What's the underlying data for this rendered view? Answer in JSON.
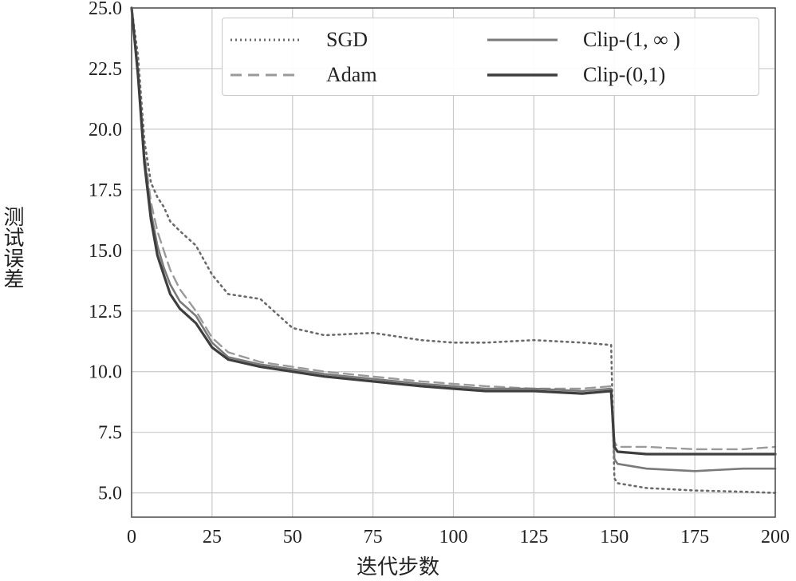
{
  "chart_data": {
    "type": "line",
    "title": "",
    "xlabel": "迭代步数",
    "ylabel": "测试误差",
    "xlim": [
      0,
      200
    ],
    "ylim": [
      4.0,
      25.0
    ],
    "xticks": [
      "0",
      "25",
      "50",
      "75",
      "100",
      "125",
      "150",
      "175",
      "200"
    ],
    "yticks": [
      "5.0",
      "7.5",
      "10.0",
      "12.5",
      "15.0",
      "17.5",
      "20.0",
      "22.5",
      "25.0"
    ],
    "grid": true,
    "legend_position": "top-right",
    "x": [
      0,
      2,
      4,
      6,
      8,
      10,
      12,
      15,
      20,
      25,
      30,
      40,
      50,
      60,
      75,
      90,
      100,
      110,
      125,
      140,
      149,
      150,
      151,
      160,
      175,
      190,
      200
    ],
    "series": [
      {
        "name": "SGD",
        "style": "dotted",
        "color": "#6a6a6a",
        "values": [
          25.0,
          23.0,
          19.5,
          17.8,
          17.2,
          16.8,
          16.2,
          15.8,
          15.2,
          14.0,
          13.2,
          13.0,
          11.8,
          11.5,
          11.6,
          11.3,
          11.2,
          11.2,
          11.3,
          11.2,
          11.1,
          5.6,
          5.4,
          5.2,
          5.1,
          5.05,
          5.0
        ]
      },
      {
        "name": "Adam",
        "style": "dashed",
        "color": "#9a9a9a",
        "values": [
          25.0,
          22.5,
          19.0,
          17.0,
          15.8,
          15.0,
          14.2,
          13.4,
          12.5,
          11.4,
          10.8,
          10.4,
          10.2,
          10.0,
          9.8,
          9.6,
          9.5,
          9.4,
          9.3,
          9.3,
          9.4,
          7.1,
          6.9,
          6.9,
          6.8,
          6.8,
          6.9
        ]
      },
      {
        "name": "Clip-(1, ∞ )",
        "style": "solid",
        "color": "#7a7a7a",
        "values": [
          25.0,
          22.3,
          18.8,
          16.6,
          15.2,
          14.3,
          13.6,
          12.9,
          12.3,
          11.2,
          10.6,
          10.3,
          10.1,
          9.9,
          9.7,
          9.5,
          9.4,
          9.3,
          9.3,
          9.2,
          9.3,
          6.4,
          6.2,
          6.0,
          5.9,
          6.0,
          6.0
        ]
      },
      {
        "name": "Clip-(0,1)",
        "style": "solid",
        "color": "#3e3e3e",
        "values": [
          25.0,
          22.2,
          18.6,
          16.3,
          14.8,
          14.0,
          13.2,
          12.6,
          12.0,
          11.0,
          10.5,
          10.2,
          10.0,
          9.8,
          9.6,
          9.4,
          9.3,
          9.2,
          9.2,
          9.1,
          9.2,
          6.9,
          6.7,
          6.6,
          6.6,
          6.6,
          6.6
        ]
      }
    ]
  }
}
